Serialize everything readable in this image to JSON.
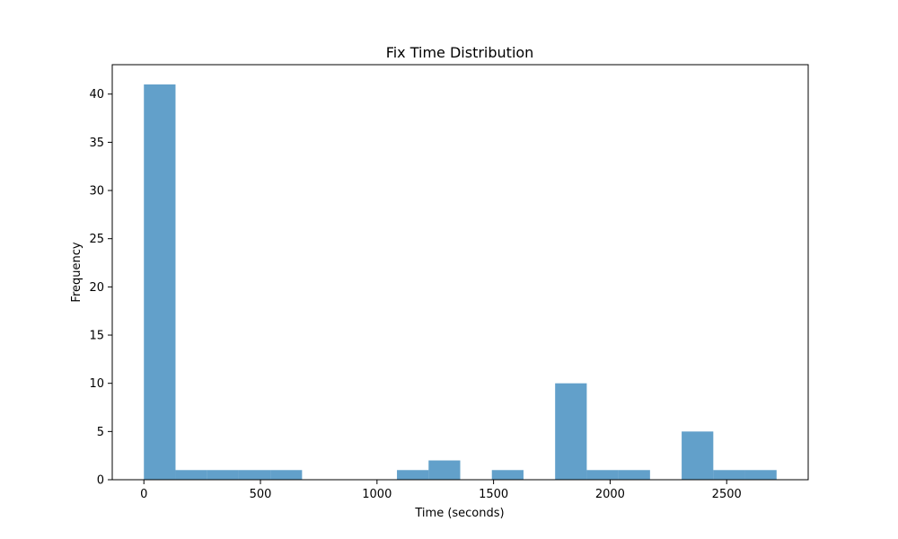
{
  "chart_data": {
    "type": "bar",
    "title": "Fix Time Distribution",
    "xlabel": "Time (seconds)",
    "ylabel": "Frequency",
    "bins": [
      {
        "start": 0,
        "end": 135.7,
        "count": 41
      },
      {
        "start": 135.7,
        "end": 271.4,
        "count": 1
      },
      {
        "start": 271.4,
        "end": 407.1,
        "count": 1
      },
      {
        "start": 407.1,
        "end": 542.8,
        "count": 1
      },
      {
        "start": 542.8,
        "end": 678.5,
        "count": 1
      },
      {
        "start": 678.5,
        "end": 814.2,
        "count": 0
      },
      {
        "start": 814.2,
        "end": 949.9,
        "count": 0
      },
      {
        "start": 949.9,
        "end": 1085.6,
        "count": 0
      },
      {
        "start": 1085.6,
        "end": 1221.3,
        "count": 1
      },
      {
        "start": 1221.3,
        "end": 1357.0,
        "count": 2
      },
      {
        "start": 1357.0,
        "end": 1492.7,
        "count": 0
      },
      {
        "start": 1492.7,
        "end": 1628.4,
        "count": 1
      },
      {
        "start": 1628.4,
        "end": 1764.1,
        "count": 0
      },
      {
        "start": 1764.1,
        "end": 1899.8,
        "count": 10
      },
      {
        "start": 1899.8,
        "end": 2035.5,
        "count": 1
      },
      {
        "start": 2035.5,
        "end": 2171.2,
        "count": 1
      },
      {
        "start": 2171.2,
        "end": 2306.9,
        "count": 0
      },
      {
        "start": 2306.9,
        "end": 2442.6,
        "count": 5
      },
      {
        "start": 2442.6,
        "end": 2578.3,
        "count": 1
      },
      {
        "start": 2578.3,
        "end": 2714.0,
        "count": 1
      }
    ],
    "xlim": [
      -135.7,
      2849.7
    ],
    "ylim": [
      0,
      43.05
    ],
    "xticks": [
      0,
      500,
      1000,
      1500,
      2000,
      2500
    ],
    "yticks": [
      0,
      5,
      10,
      15,
      20,
      25,
      30,
      35,
      40
    ],
    "bar_color": "#1f77b4",
    "bar_opacity": 0.7,
    "grid": false,
    "legend": false
  }
}
